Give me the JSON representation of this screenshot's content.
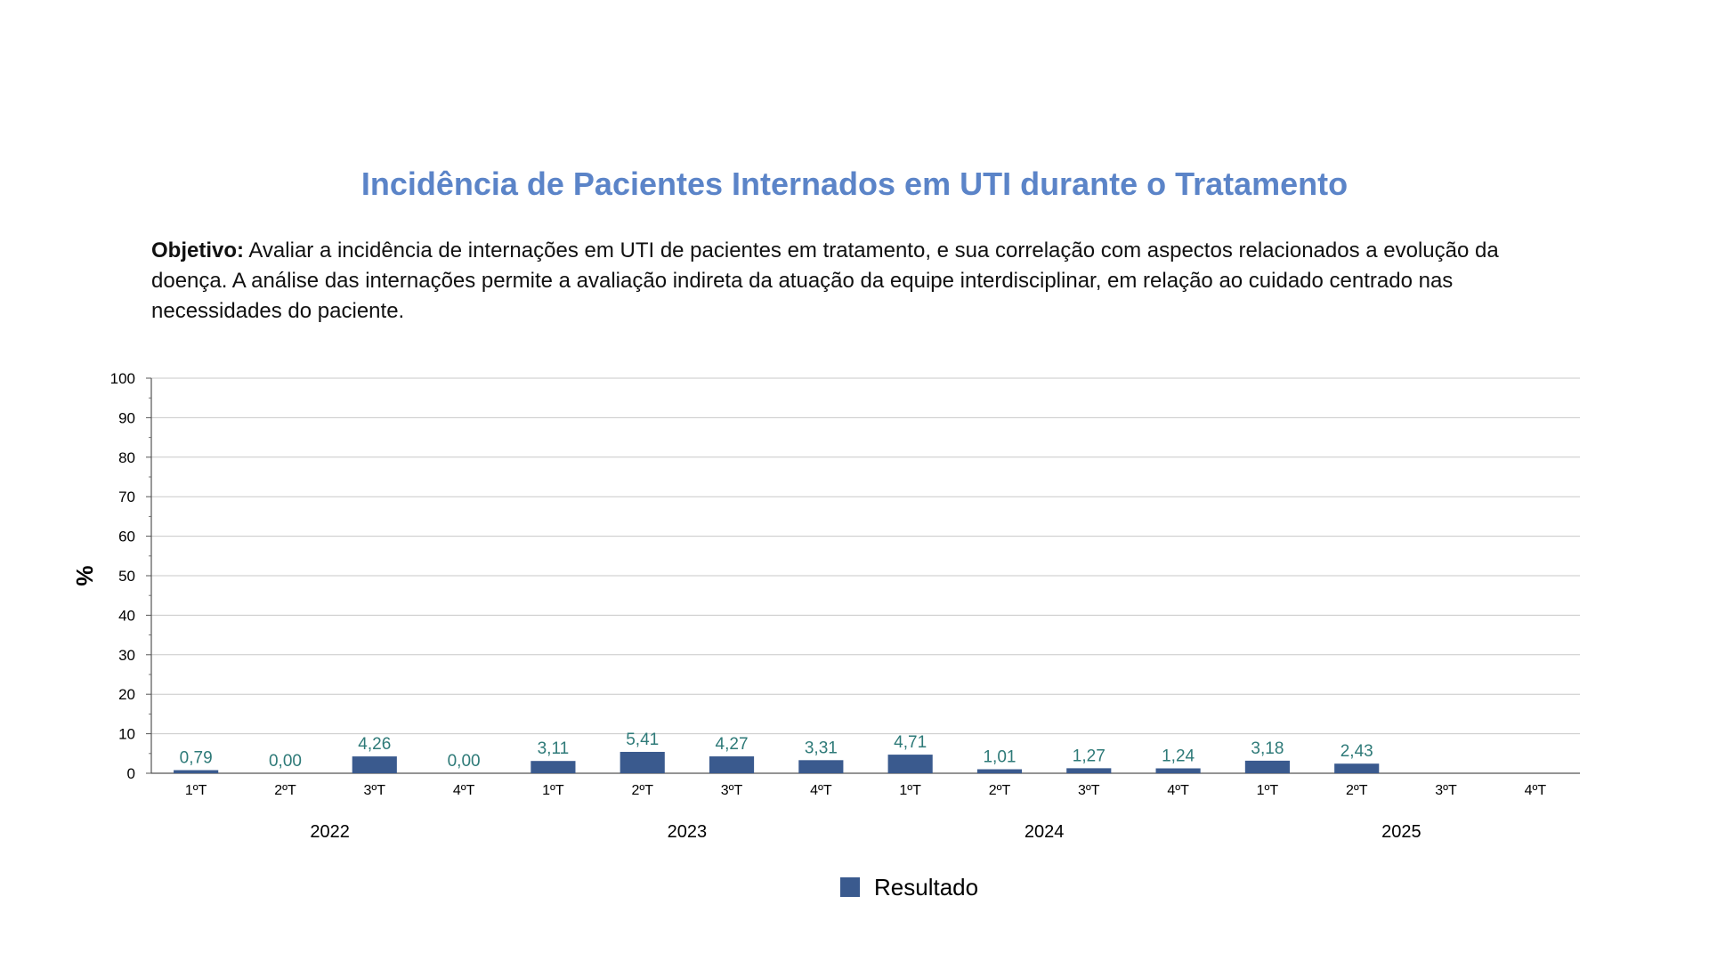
{
  "title": "Incidência de Pacientes Internados em UTI durante o Tratamento",
  "objective": {
    "label": "Objetivo:",
    "text": "Avaliar a incidência de internações em UTI de pacientes em tratamento, e sua correlação com aspectos relacionados a evolução da doença. A análise das internações permite a avaliação indireta da atuação da equipe interdisciplinar, em relação ao cuidado centrado nas necessidades do paciente."
  },
  "chart_data": {
    "type": "bar",
    "ylabel": "%",
    "ylim": [
      0,
      100
    ],
    "yticks": [
      0,
      10,
      20,
      30,
      40,
      50,
      60,
      70,
      80,
      90,
      100
    ],
    "grid": true,
    "legend_position": "bottom",
    "categories": [
      "1ºT",
      "2ºT",
      "3ºT",
      "4ºT",
      "1ºT",
      "2ºT",
      "3ºT",
      "4ºT",
      "1ºT",
      "2ºT",
      "3ºT",
      "4ºT",
      "1ºT",
      "2ºT",
      "3ºT",
      "4ºT"
    ],
    "groups": [
      {
        "label": "2022",
        "start": 0,
        "end": 3
      },
      {
        "label": "2023",
        "start": 4,
        "end": 7
      },
      {
        "label": "2024",
        "start": 8,
        "end": 11
      },
      {
        "label": "2025",
        "start": 12,
        "end": 15
      }
    ],
    "series": [
      {
        "name": "Resultado",
        "color": "#3a5a8e",
        "values": [
          0.79,
          0.0,
          4.26,
          0.0,
          3.11,
          5.41,
          4.27,
          3.31,
          4.71,
          1.01,
          1.27,
          1.24,
          3.18,
          2.43,
          null,
          null
        ],
        "labels": [
          "0,79",
          "0,00",
          "4,26",
          "0,00",
          "3,11",
          "5,41",
          "4,27",
          "3,31",
          "4,71",
          "1,01",
          "1,27",
          "1,24",
          "3,18",
          "2,43",
          "",
          ""
        ]
      }
    ],
    "label_color": "#2e7a78",
    "grid_color": "#c8c8c8"
  }
}
